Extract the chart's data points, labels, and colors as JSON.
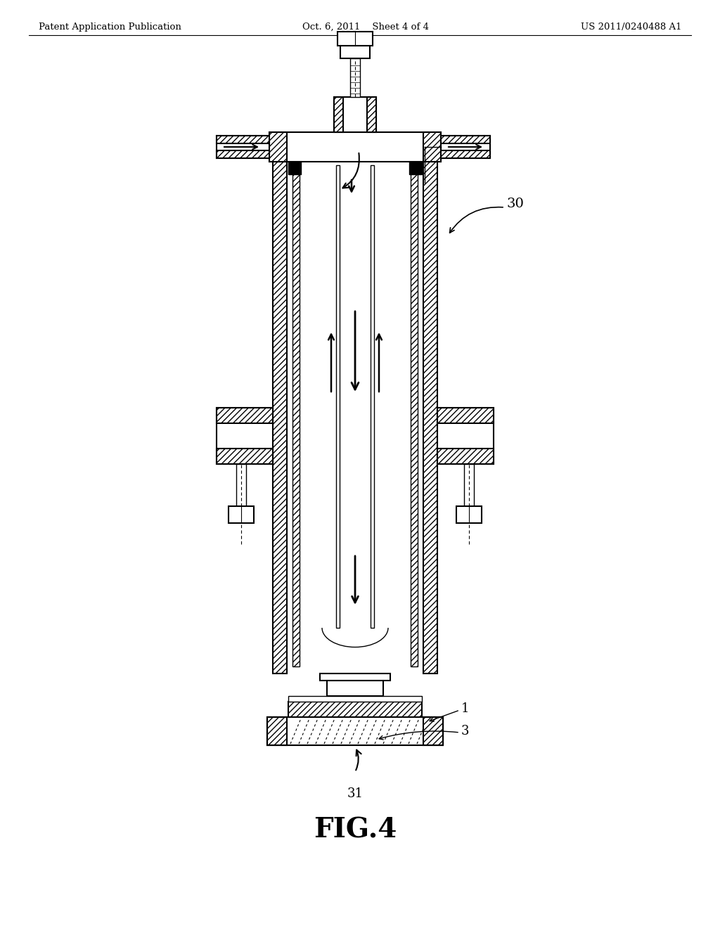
{
  "title": "FIG.4",
  "header_left": "Patent Application Publication",
  "header_middle": "Oct. 6, 2011    Sheet 4 of 4",
  "header_right": "US 2011/0240488 A1",
  "label_30": "30",
  "label_31": "31",
  "label_1": "1",
  "label_3": "3",
  "bg_color": "#ffffff",
  "line_color": "#000000",
  "fig_width": 10.24,
  "fig_height": 13.2
}
